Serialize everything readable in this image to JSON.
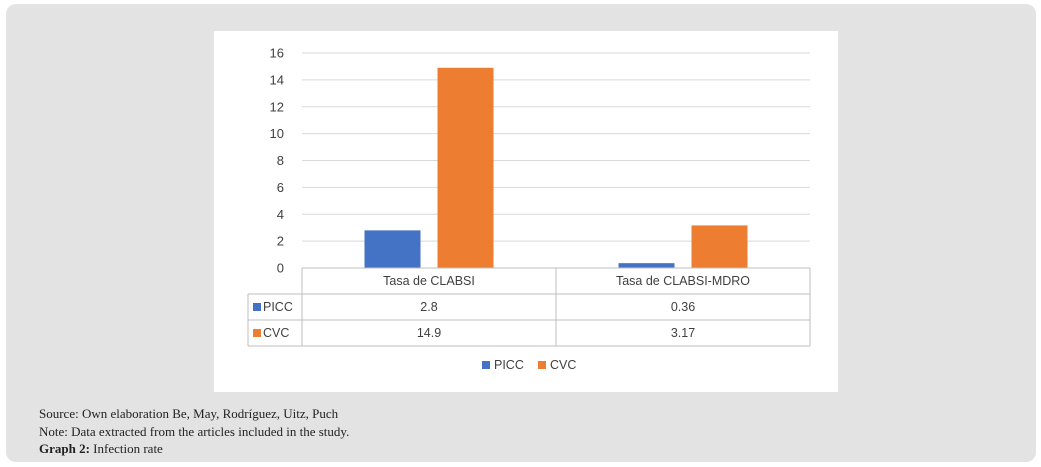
{
  "chart_data": {
    "type": "bar",
    "categories": [
      "Tasa de CLABSI",
      "Tasa de CLABSI-MDRO"
    ],
    "series": [
      {
        "name": "PICC",
        "values": [
          2.8,
          0.36
        ],
        "labels": [
          "2.8",
          "0.36"
        ],
        "color": "#4472c4"
      },
      {
        "name": "CVC",
        "values": [
          14.9,
          3.17
        ],
        "labels": [
          "14.9",
          "3.17"
        ],
        "color": "#ed7d31"
      }
    ],
    "ylim": [
      0,
      16
    ],
    "yticks": [
      "0",
      "2",
      "4",
      "6",
      "8",
      "10",
      "12",
      "14",
      "16"
    ],
    "grid": true,
    "legend_position": "bottom",
    "data_table": true
  },
  "caption": {
    "source": "Source: Own elaboration Be, May, Rodríguez, Uitz, Puch",
    "note": "Note: Data extracted from the articles included in the study.",
    "graph_label": "Graph 2:",
    "graph_title": "Infection rate"
  }
}
